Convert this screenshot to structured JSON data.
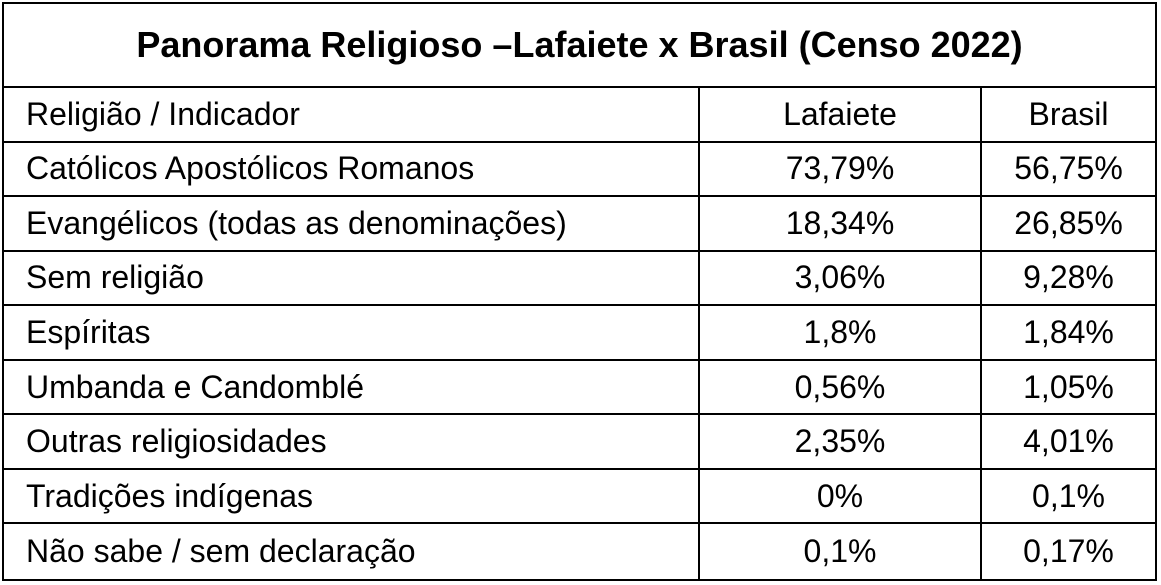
{
  "table": {
    "title": "Panorama Religioso –Lafaiete x Brasil (Censo 2022)",
    "header": [
      "Religião / Indicador",
      "Lafaiete",
      "Brasil"
    ],
    "rows": [
      [
        "Católicos Apostólicos Romanos",
        "73,79%",
        "56,75%"
      ],
      [
        "Evangélicos (todas as denominações)",
        "18,34%",
        "26,85%"
      ],
      [
        "Sem religião",
        "3,06%",
        "9,28%"
      ],
      [
        "Espíritas",
        "1,8%",
        "1,84%"
      ],
      [
        "Umbanda e Candomblé",
        "0,56%",
        "1,05%"
      ],
      [
        "Outras religiosidades",
        "2,35%",
        "4,01%"
      ],
      [
        "Tradições indígenas",
        "0%",
        "0,1%"
      ],
      [
        "Não sabe / sem declaração",
        "0,1%",
        "0,17%"
      ]
    ]
  }
}
